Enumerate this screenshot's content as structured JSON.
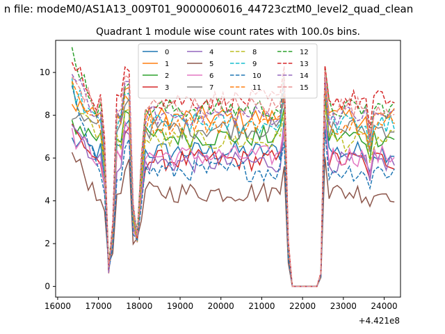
{
  "suptitle": "n file: modeM0/AS1A13_009T01_9000006016_44723cztM0_level2_quad_clean",
  "chart_data": {
    "type": "line",
    "title": "Quadrant 1 module wise count rates with 100.0s bins.",
    "xlabel": "",
    "ylabel": "",
    "x_offset_label": "+4.421e8",
    "xlim": [
      15950,
      24400
    ],
    "ylim": [
      -0.5,
      11.5
    ],
    "xticks": [
      16000,
      17000,
      18000,
      19000,
      20000,
      21000,
      22000,
      23000,
      24000
    ],
    "yticks": [
      0,
      2,
      4,
      6,
      8,
      10
    ],
    "legend": {
      "placement": "top-center",
      "ncol": 4
    },
    "grid": false,
    "x_start": 16350,
    "x_step": 100,
    "series": [
      {
        "name": "0",
        "color": "#1f77b4",
        "style": "solid",
        "baseline": 6.3,
        "start": 6.8
      },
      {
        "name": "1",
        "color": "#ff7f0e",
        "style": "solid",
        "baseline": 7.9,
        "start": 8.6
      },
      {
        "name": "2",
        "color": "#2ca02c",
        "style": "solid",
        "baseline": 7.0,
        "start": 7.6
      },
      {
        "name": "3",
        "color": "#d62728",
        "style": "solid",
        "baseline": 5.9,
        "start": 7.4
      },
      {
        "name": "4",
        "color": "#9467bd",
        "style": "solid",
        "baseline": 5.8,
        "start": 7.8
      },
      {
        "name": "5",
        "color": "#8c564b",
        "style": "solid",
        "baseline": 4.4,
        "start": 6.1
      },
      {
        "name": "6",
        "color": "#e377c2",
        "style": "solid",
        "baseline": 6.1,
        "start": 7.0
      },
      {
        "name": "7",
        "color": "#7f7f7f",
        "style": "solid",
        "baseline": 7.4,
        "start": 8.1
      },
      {
        "name": "8",
        "color": "#bcbd22",
        "style": "dashed",
        "baseline": 6.8,
        "start": 9.2
      },
      {
        "name": "9",
        "color": "#17becf",
        "style": "dashed",
        "baseline": 7.6,
        "start": 9.3
      },
      {
        "name": "10",
        "color": "#1f77b4",
        "style": "dashed",
        "baseline": 5.4,
        "start": 9.0
      },
      {
        "name": "11",
        "color": "#ff7f0e",
        "style": "dashed",
        "baseline": 7.6,
        "start": 9.5
      },
      {
        "name": "12",
        "color": "#2ca02c",
        "style": "dashed",
        "baseline": 8.3,
        "start": 11.0
      },
      {
        "name": "13",
        "color": "#d62728",
        "style": "dashed",
        "baseline": 8.7,
        "start": 10.4
      },
      {
        "name": "14",
        "color": "#9467bd",
        "style": "dashed",
        "baseline": 8.0,
        "start": 9.8
      },
      {
        "name": "15",
        "color": "#e88f8f",
        "style": "dashed",
        "baseline": 8.4,
        "start": 9.7
      }
    ]
  }
}
